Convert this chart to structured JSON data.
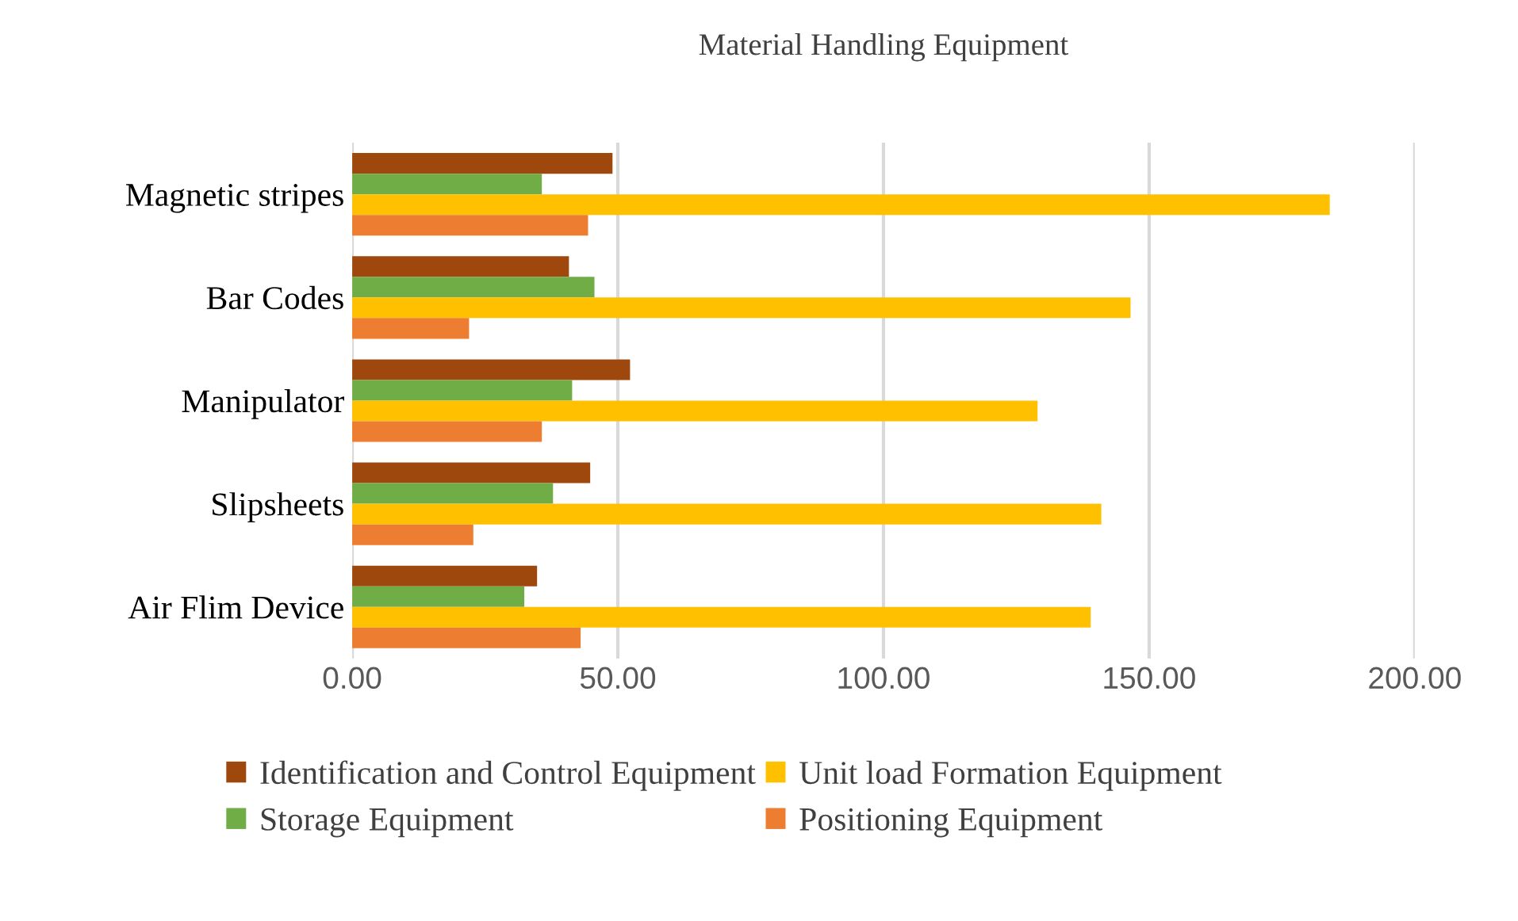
{
  "chart_data": {
    "type": "bar",
    "orientation": "horizontal",
    "title": "Material Handling Equipment",
    "categories": [
      "Magnetic stripes",
      "Bar Codes",
      "Manipulator",
      "Slipsheets",
      "Air Flim Device"
    ],
    "series": [
      {
        "name": "Identification and Control Equipment",
        "color": "#9e480e",
        "values": [
          49,
          40.8,
          52.3,
          44.8,
          34.8
        ]
      },
      {
        "name": "Storage Equipment",
        "color": "#70ad47",
        "values": [
          35.7,
          45.6,
          41.4,
          37.8,
          32.4
        ]
      },
      {
        "name": "Unit load Formation Equipment",
        "color": "#ffc000",
        "values": [
          184,
          146.5,
          129,
          141,
          139
        ]
      },
      {
        "name": "Positioning Equipment",
        "color": "#ed7d31",
        "values": [
          44.4,
          22,
          35.7,
          22.8,
          43
        ]
      }
    ],
    "xlim": [
      0,
      200
    ],
    "xticks": [
      {
        "value": 0,
        "label": "0.00"
      },
      {
        "value": 50,
        "label": "50.00"
      },
      {
        "value": 100,
        "label": "100.00"
      },
      {
        "value": 150,
        "label": "150.00"
      },
      {
        "value": 200,
        "label": "200.00"
      }
    ],
    "grid": "x",
    "legend": "bottom"
  }
}
